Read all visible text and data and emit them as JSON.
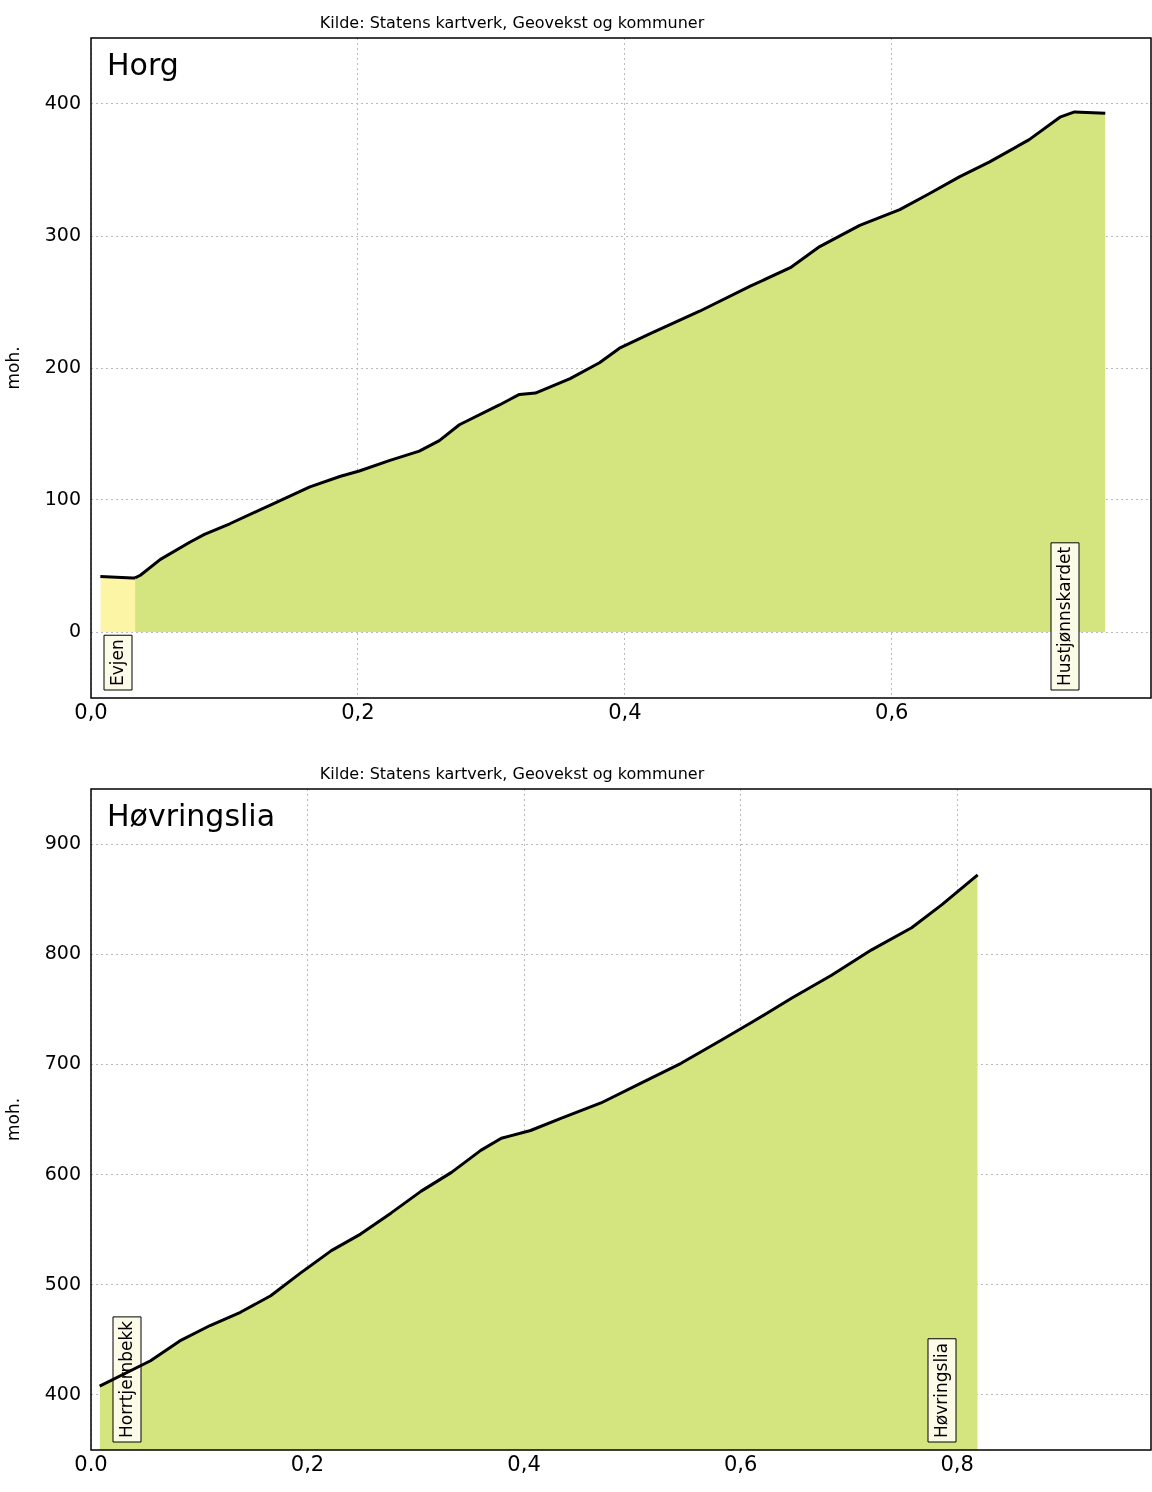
{
  "chart_data": [
    {
      "type": "area",
      "title": "Horg",
      "ylabel": "moh.",
      "grid": true,
      "xlim": [
        0,
        0.795
      ],
      "ylim": [
        -50,
        450
      ],
      "xticks": [
        {
          "value": 0,
          "label": "0,0"
        },
        {
          "value": 0.2,
          "label": "0,2"
        },
        {
          "value": 0.4,
          "label": "0,4"
        },
        {
          "value": 0.6,
          "label": "0,6"
        }
      ],
      "yticks": [
        0,
        100,
        200,
        300,
        400
      ],
      "annotations": [
        "Kilde: Statens kartverk, Geovekst og kommuner",
        "Evjen",
        "Hustjønnskardet"
      ],
      "series": [
        {
          "color": "#fbf5a5",
          "x": [
            0.007,
            0.031,
            0.033
          ],
          "values": [
            42,
            41,
            41
          ]
        },
        {
          "color": "#d4e57f",
          "x": [
            0.033,
            0.037,
            0.052,
            0.074,
            0.085,
            0.104,
            0.134,
            0.164,
            0.187,
            0.201,
            0.224,
            0.246,
            0.261,
            0.276,
            0.306,
            0.321,
            0.333,
            0.359,
            0.381,
            0.396,
            0.419,
            0.456,
            0.494,
            0.524,
            0.546,
            0.576,
            0.606,
            0.628,
            0.651,
            0.673,
            0.703,
            0.726,
            0.737,
            0.76
          ],
          "values": [
            41,
            43,
            55,
            68,
            74,
            82,
            96,
            110,
            118,
            122,
            130,
            137,
            145,
            157,
            172,
            180,
            181,
            192,
            204,
            215,
            226,
            243,
            262,
            276,
            292,
            308,
            320,
            332,
            345,
            356,
            373,
            390,
            394,
            393
          ]
        }
      ]
    },
    {
      "type": "area",
      "title": "Høvringslia",
      "ylabel": "moh.",
      "grid": true,
      "xlim": [
        0,
        0.98
      ],
      "ylim": [
        350,
        950
      ],
      "xticks": [
        {
          "value": 0,
          "label": "0.0"
        },
        {
          "value": 0.2,
          "label": "0,2"
        },
        {
          "value": 0.4,
          "label": "0,4"
        },
        {
          "value": 0.6,
          "label": "0,6"
        },
        {
          "value": 0.8,
          "label": "0,8"
        }
      ],
      "yticks": [
        400,
        500,
        600,
        700,
        800,
        900
      ],
      "annotations": [
        "Kilde: Statens kartverk, Geovekst og kommuner",
        "Horrtjernbekk",
        "Høvringslia"
      ],
      "series": [
        {
          "color": "#d4e57f",
          "x": [
            0.008,
            0.055,
            0.082,
            0.11,
            0.138,
            0.166,
            0.194,
            0.222,
            0.249,
            0.277,
            0.305,
            0.333,
            0.36,
            0.379,
            0.406,
            0.434,
            0.471,
            0.508,
            0.545,
            0.582,
            0.61,
            0.647,
            0.684,
            0.721,
            0.758,
            0.786,
            0.819
          ],
          "values": [
            408,
            431,
            449,
            463,
            475,
            490,
            511,
            531,
            546,
            565,
            585,
            602,
            622,
            633,
            640,
            651,
            665,
            683,
            701,
            722,
            738,
            760,
            781,
            804,
            824,
            845,
            872
          ]
        }
      ]
    }
  ]
}
